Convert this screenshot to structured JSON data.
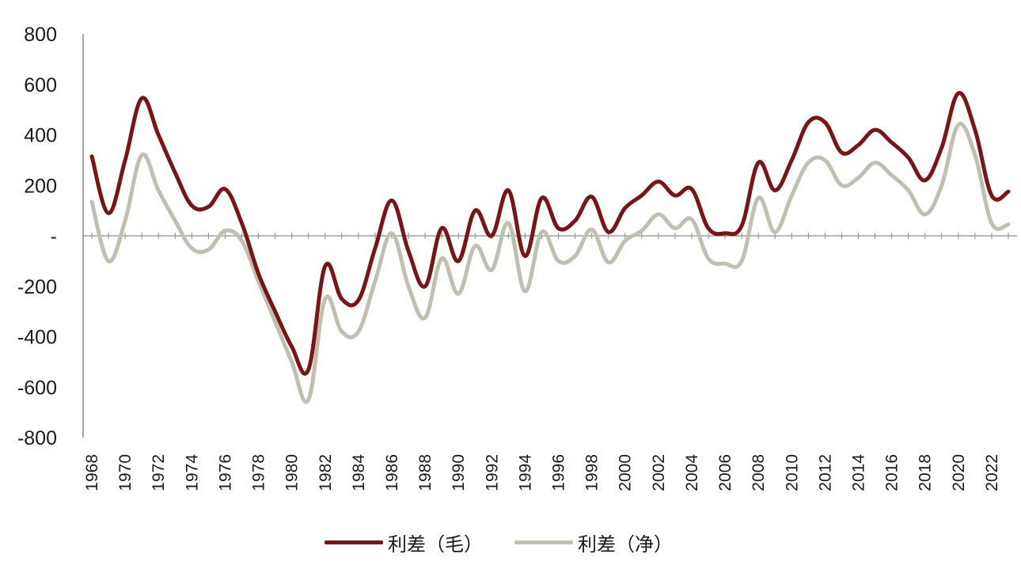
{
  "chart_data": {
    "type": "line",
    "title": "",
    "xlabel": "",
    "ylabel": "",
    "ylim": [
      -800,
      800
    ],
    "y_ticks": [
      {
        "value": 800,
        "label": "800"
      },
      {
        "value": 600,
        "label": "600"
      },
      {
        "value": 400,
        "label": "400"
      },
      {
        "value": 200,
        "label": "200"
      },
      {
        "value": 0,
        "label": "-"
      },
      {
        "value": -200,
        "label": "-200"
      },
      {
        "value": -400,
        "label": "-400"
      },
      {
        "value": -600,
        "label": "-600"
      },
      {
        "value": -800,
        "label": "-800"
      }
    ],
    "x_tick_labels": [
      "1968",
      "1970",
      "1972",
      "1974",
      "1976",
      "1978",
      "1980",
      "1982",
      "1984",
      "1986",
      "1988",
      "1990",
      "1992",
      "1994",
      "1996",
      "1998",
      "2000",
      "2002",
      "2004",
      "2006",
      "2008",
      "2010",
      "2012",
      "2014",
      "2016",
      "2018",
      "2020",
      "2022"
    ],
    "x": [
      1968,
      1969,
      1970,
      1971,
      1972,
      1973,
      1974,
      1975,
      1976,
      1977,
      1978,
      1979,
      1980,
      1981,
      1982,
      1983,
      1984,
      1985,
      1986,
      1987,
      1988,
      1989,
      1990,
      1991,
      1992,
      1993,
      1994,
      1995,
      1996,
      1997,
      1998,
      1999,
      2000,
      2001,
      2002,
      2003,
      2004,
      2005,
      2006,
      2007,
      2008,
      2009,
      2010,
      2011,
      2012,
      2013,
      2014,
      2015,
      2016,
      2017,
      2018,
      2019,
      2020,
      2021,
      2022,
      2023
    ],
    "grid": false,
    "legend_position": "bottom",
    "series": [
      {
        "name": "利差（毛）",
        "color": "#7a1416",
        "values": [
          315,
          90,
          300,
          545,
          400,
          250,
          120,
          115,
          185,
          50,
          -150,
          -300,
          -440,
          -530,
          -120,
          -250,
          -255,
          -50,
          140,
          -60,
          -200,
          30,
          -100,
          100,
          0,
          180,
          -80,
          150,
          30,
          60,
          155,
          15,
          110,
          160,
          215,
          160,
          185,
          30,
          10,
          40,
          290,
          180,
          300,
          450,
          450,
          330,
          360,
          420,
          370,
          310,
          220,
          350,
          565,
          420,
          160,
          175
        ]
      },
      {
        "name": "利差（净）",
        "color": "#c0bfb0",
        "values": [
          135,
          -100,
          60,
          320,
          180,
          60,
          -50,
          -55,
          20,
          -20,
          -180,
          -340,
          -500,
          -650,
          -250,
          -380,
          -380,
          -180,
          10,
          -200,
          -325,
          -90,
          -230,
          -40,
          -135,
          50,
          -220,
          15,
          -100,
          -80,
          25,
          -105,
          -20,
          20,
          85,
          30,
          65,
          -90,
          -110,
          -100,
          150,
          15,
          160,
          290,
          300,
          200,
          230,
          290,
          240,
          180,
          85,
          200,
          440,
          320,
          50,
          45
        ]
      }
    ]
  }
}
